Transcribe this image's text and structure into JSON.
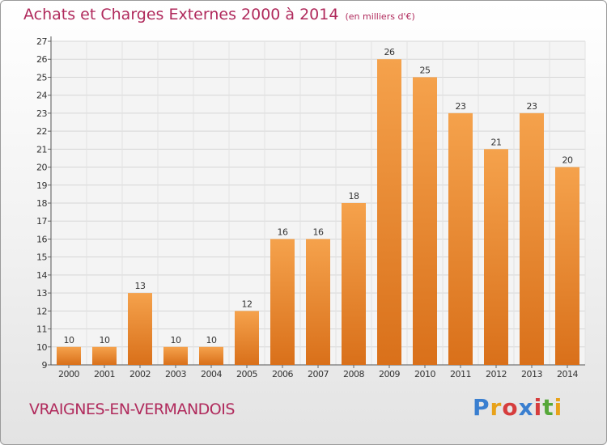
{
  "header": {
    "title": "Achats et Charges Externes 2000 à 2014",
    "unit": "(en milliers d'€)"
  },
  "commune": "VRAIGNES-EN-VERMANDOIS",
  "logo": {
    "text": "Proxiti",
    "colors": [
      "#3a7fd0",
      "#e8a21a",
      "#d63d3d",
      "#56a83a"
    ]
  },
  "colors": {
    "bar": "#f19a3e",
    "bar_dark": "#d9701a",
    "title": "#b02a5c",
    "grid": "#d8d8d8"
  },
  "chart_data": {
    "type": "bar",
    "title": "Achats et Charges Externes 2000 à 2014",
    "subtitle": "(en milliers d'€)",
    "categories": [
      "2000",
      "2001",
      "2002",
      "2003",
      "2004",
      "2005",
      "2006",
      "2007",
      "2008",
      "2009",
      "2010",
      "2011",
      "2012",
      "2013",
      "2014"
    ],
    "values": [
      10,
      10,
      13,
      10,
      10,
      12,
      16,
      16,
      18,
      26,
      25,
      23,
      21,
      23,
      20
    ],
    "ylim": [
      9,
      27
    ],
    "yticks": [
      9,
      10,
      11,
      12,
      13,
      14,
      15,
      16,
      17,
      18,
      19,
      20,
      21,
      22,
      23,
      24,
      25,
      26,
      27
    ],
    "grid": true,
    "data_labels": true
  }
}
